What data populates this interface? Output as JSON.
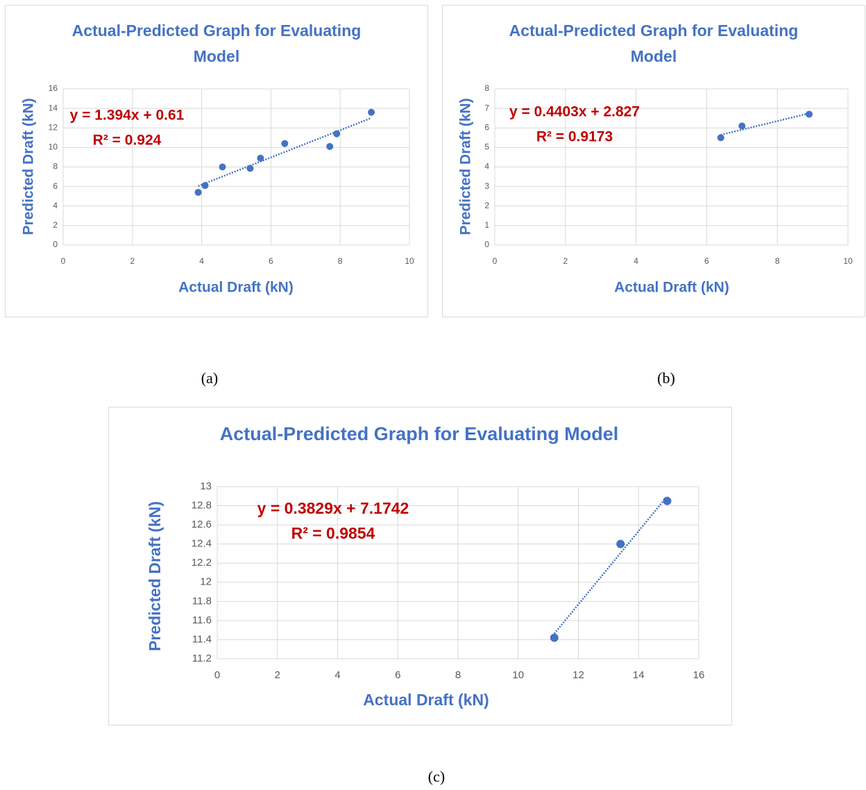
{
  "chart_data": [
    {
      "type": "scatter",
      "title": "Actual-Predicted Graph for Evaluating Model",
      "x_label": "Actual Draft (kN)",
      "y_label": "Predicted Draft (kN)",
      "x": [
        3.9,
        4.1,
        4.6,
        5.4,
        5.7,
        6.4,
        7.7,
        7.9,
        8.9
      ],
      "y": [
        5.4,
        6.1,
        8.0,
        7.85,
        8.9,
        10.4,
        10.1,
        11.4,
        13.6
      ],
      "color": "#4472c4",
      "xlim": [
        0,
        10
      ],
      "ylim": [
        0,
        16
      ],
      "xticks": [
        0,
        2,
        4,
        6,
        8,
        10
      ],
      "yticks": [
        0,
        2,
        4,
        6,
        8,
        10,
        12,
        14,
        16
      ],
      "grid": true,
      "trendline": {
        "equation": "y = 1.394x + 0.61",
        "r_squared": "R² = 0.924",
        "slope": 1.394,
        "intercept": 0.61,
        "color": "#4472c4",
        "style": "dotted",
        "label_color": "#c00000"
      },
      "caption": "(a)"
    },
    {
      "type": "scatter",
      "title": "Actual-Predicted Graph for Evaluating Model",
      "x_label": "Actual Draft (kN)",
      "y_label": "Predicted Draft (kN)",
      "x": [
        6.4,
        7.0,
        8.9
      ],
      "y": [
        5.5,
        6.1,
        6.7
      ],
      "color": "#4472c4",
      "xlim": [
        0,
        10
      ],
      "ylim": [
        0,
        8
      ],
      "xticks": [
        0,
        2,
        4,
        6,
        8,
        10
      ],
      "yticks": [
        0,
        1,
        2,
        3,
        4,
        5,
        6,
        7,
        8
      ],
      "grid": true,
      "trendline": {
        "equation": "y = 0.4403x + 2.827",
        "r_squared": "R² = 0.9173",
        "slope": 0.4403,
        "intercept": 2.827,
        "color": "#4472c4",
        "style": "dotted",
        "label_color": "#c00000"
      },
      "caption": "(b)"
    },
    {
      "type": "scatter",
      "title": "Actual-Predicted Graph for Evaluating Model",
      "x_label": "Actual Draft (kN)",
      "y_label": "Predicted Draft (kN)",
      "x": [
        11.2,
        13.4,
        14.95
      ],
      "y": [
        11.42,
        12.4,
        12.85
      ],
      "color": "#4472c4",
      "xlim": [
        0,
        16
      ],
      "ylim": [
        11.2,
        13
      ],
      "xticks": [
        0,
        2,
        4,
        6,
        8,
        10,
        12,
        14,
        16
      ],
      "yticks": [
        11.2,
        11.4,
        11.6,
        11.8,
        12,
        12.2,
        12.4,
        12.6,
        12.8,
        13
      ],
      "grid": true,
      "trendline": {
        "equation": "y = 0.3829x + 7.1742",
        "r_squared": "R² = 0.9854",
        "slope": 0.3829,
        "intercept": 7.1742,
        "color": "#4472c4",
        "style": "dotted",
        "label_color": "#c00000"
      },
      "caption": "(c)"
    }
  ]
}
